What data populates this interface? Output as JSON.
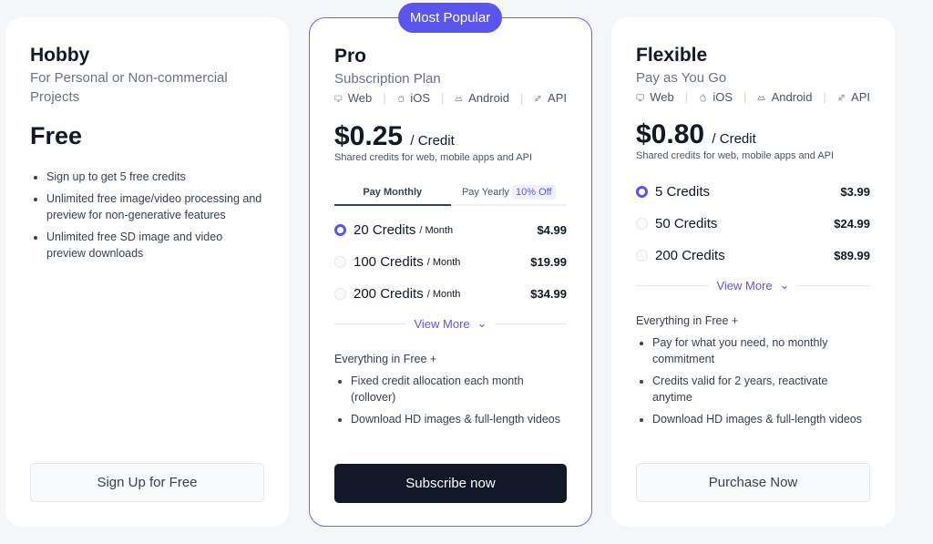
{
  "hobby": {
    "title": "Hobby",
    "subtitle": "For Personal or Non-commercial Projects",
    "price": "Free",
    "features": [
      "Sign up to get 5 free credits",
      "Unlimited free image/video processing and preview for non-generative features",
      "Unlimited free SD image and video preview downloads"
    ],
    "button": "Sign Up for Free"
  },
  "pro": {
    "badge": "Most Popular",
    "title": "Pro",
    "subtitle": "Subscription Plan",
    "platforms": [
      "Web",
      "iOS",
      "Android",
      "API"
    ],
    "price": "$0.25",
    "unit": "/ Credit",
    "note": "Shared credits for web, mobile apps and API",
    "tabs": {
      "monthly": "Pay Monthly",
      "yearly": "Pay Yearly",
      "discount": "10% Off"
    },
    "options": [
      {
        "credits": "20 Credits",
        "period": "/ Month",
        "price": "$4.99",
        "selected": true
      },
      {
        "credits": "100 Credits",
        "period": "/ Month",
        "price": "$19.99",
        "selected": false
      },
      {
        "credits": "200 Credits",
        "period": "/ Month",
        "price": "$34.99",
        "selected": false
      }
    ],
    "view_more": "View More",
    "features_title": "Everything in Free +",
    "features": [
      "Fixed credit allocation each month (rollover)",
      "Download HD images & full-length videos"
    ],
    "button": "Subscribe now"
  },
  "flex": {
    "title": "Flexible",
    "subtitle": "Pay as You Go",
    "platforms": [
      "Web",
      "iOS",
      "Android",
      "API"
    ],
    "price": "$0.80",
    "unit": "/ Credit",
    "note": "Shared credits for web, mobile apps and API",
    "options": [
      {
        "credits": "5 Credits",
        "price": "$3.99",
        "selected": true
      },
      {
        "credits": "50 Credits",
        "price": "$24.99",
        "selected": false
      },
      {
        "credits": "200 Credits",
        "price": "$89.99",
        "selected": false
      }
    ],
    "view_more": "View More",
    "features_title": "Everything in Free +",
    "features": [
      "Pay for what you need, no monthly commitment",
      "Credits valid for 2 years, reactivate anytime",
      "Download HD images & full-length videos"
    ],
    "button": "Purchase Now"
  },
  "colors": {
    "accent": "#5b55f0",
    "dark_button": "#111827"
  }
}
